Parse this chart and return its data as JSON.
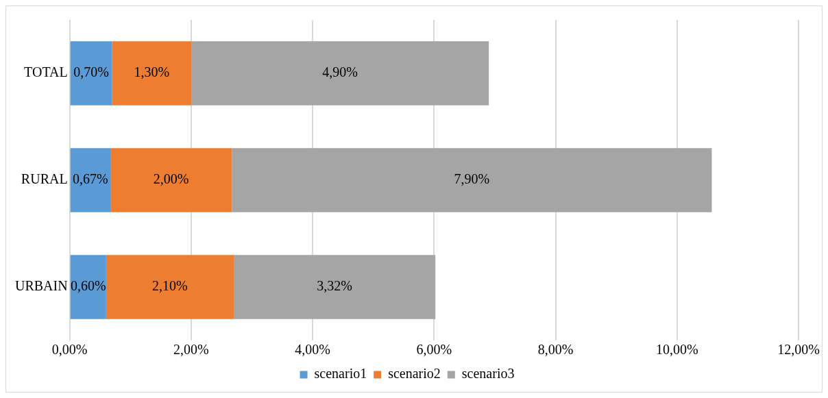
{
  "chart_data": {
    "type": "bar",
    "orientation": "horizontal",
    "stacked": true,
    "categories": [
      "TOTAL",
      "RURAL",
      "URBAIN"
    ],
    "series": [
      {
        "name": "scenario1",
        "color": "#5b9bd5",
        "values": [
          0.7,
          0.67,
          0.6
        ],
        "value_labels": [
          "0,70%",
          "0,67%",
          "0,60%"
        ]
      },
      {
        "name": "scenario2",
        "color": "#ed7d31",
        "values": [
          1.3,
          2.0,
          2.1
        ],
        "value_labels": [
          "1,30%",
          "2,00%",
          "2,10%"
        ]
      },
      {
        "name": "scenario3",
        "color": "#a5a5a5",
        "values": [
          4.9,
          7.9,
          3.32
        ],
        "value_labels": [
          "4,90%",
          "7,90%",
          "3,32%"
        ]
      }
    ],
    "xlim": [
      0,
      12
    ],
    "xticks": [
      {
        "value": 0,
        "label": "0,00%"
      },
      {
        "value": 2,
        "label": "2,00%"
      },
      {
        "value": 4,
        "label": "4,00%"
      },
      {
        "value": 6,
        "label": "6,00%"
      },
      {
        "value": 8,
        "label": "8,00%"
      },
      {
        "value": 10,
        "label": "10,00%"
      },
      {
        "value": 12,
        "label": "12,00%"
      }
    ],
    "grid": "x",
    "legend": "bottom"
  }
}
